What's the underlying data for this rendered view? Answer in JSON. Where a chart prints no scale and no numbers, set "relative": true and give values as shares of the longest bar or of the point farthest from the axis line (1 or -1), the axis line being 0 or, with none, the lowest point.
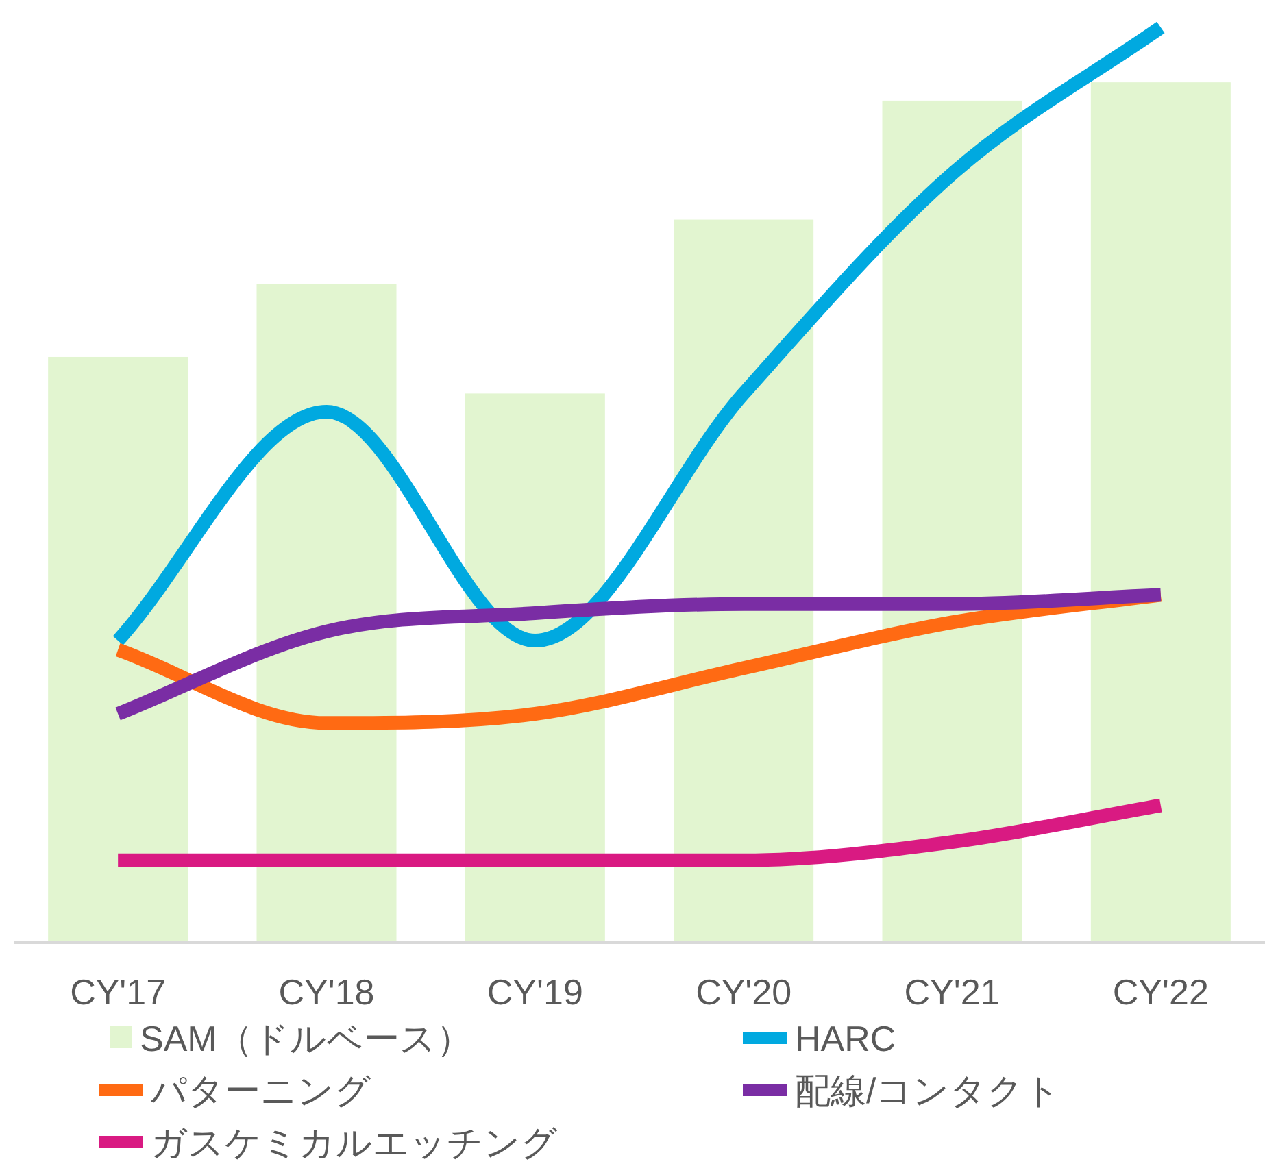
{
  "chart_data": {
    "type": "bar",
    "relative": true,
    "categories": [
      "CY'17",
      "CY'18",
      "CY'19",
      "CY'20",
      "CY'21",
      "CY'22"
    ],
    "series": [
      {
        "name": "SAM（ドルベース）",
        "color": "#e2f5d0",
        "values": [
          0.64,
          0.72,
          0.6,
          0.79,
          0.92,
          0.94
        ]
      },
      {
        "name": "HARC",
        "type": "line",
        "color": "#00a9e0",
        "values": [
          0.33,
          0.58,
          0.33,
          0.6,
          0.84,
          1.0
        ]
      },
      {
        "name": "パターニング",
        "type": "line",
        "color": "#ff6a13",
        "values": [
          0.32,
          0.24,
          0.25,
          0.3,
          0.35,
          0.38
        ]
      },
      {
        "name": "配線/コンタクト",
        "type": "line",
        "color": "#7a2da4",
        "values": [
          0.25,
          0.34,
          0.36,
          0.37,
          0.37,
          0.38
        ]
      },
      {
        "name": "ガスケミカルエッチング",
        "type": "line",
        "color": "#d91a82",
        "values": [
          0.09,
          0.09,
          0.09,
          0.09,
          0.11,
          0.15
        ]
      }
    ],
    "legend": "bottom",
    "line_style": "solid",
    "marker": "none"
  }
}
